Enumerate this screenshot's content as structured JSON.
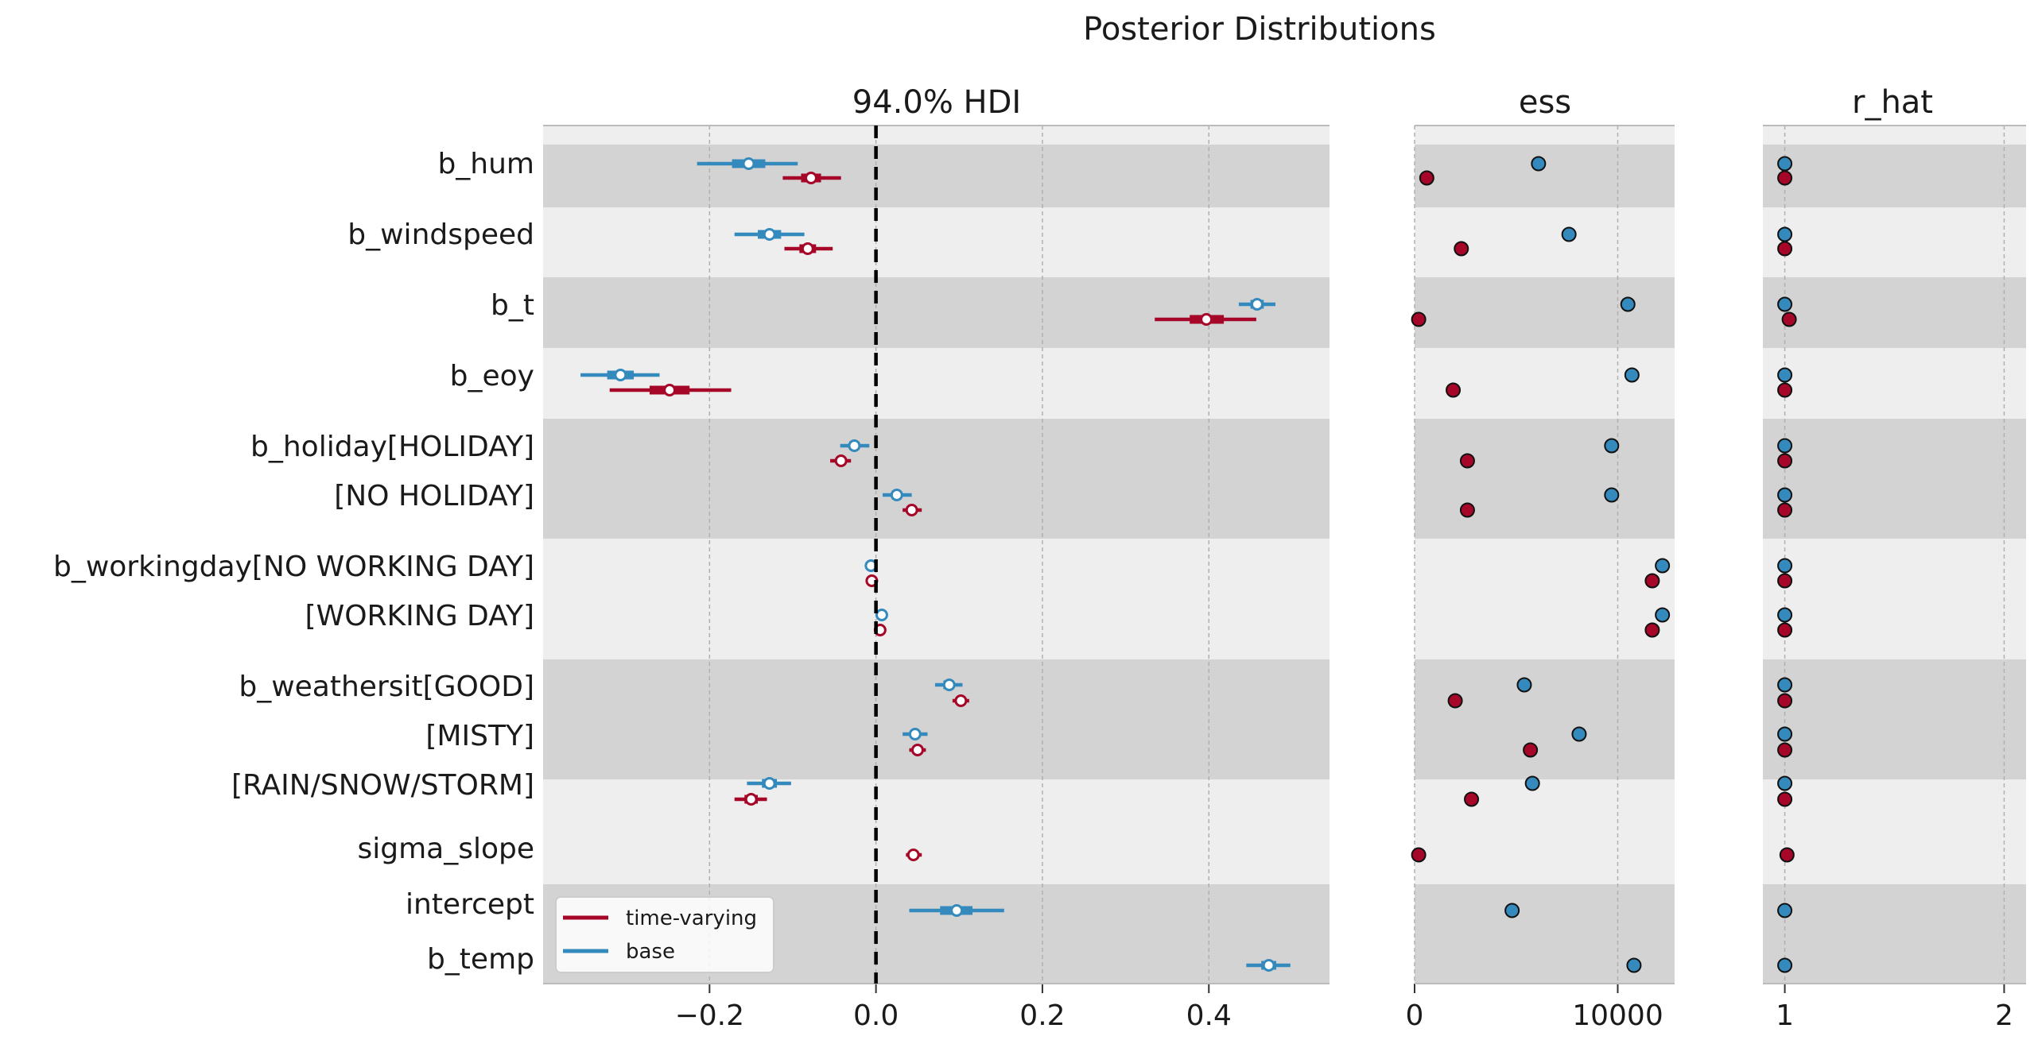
{
  "suptitle": "Posterior Distributions",
  "colors": {
    "time_varying": "#A60628",
    "base": "#348ABD",
    "band_dark": "#d3d3d3",
    "band_light": "#eeeeee",
    "zero_line": "#000000"
  },
  "chart_data": [
    {
      "type": "forest",
      "title": "94.0% HDI",
      "xlim": [
        -0.4,
        0.545
      ],
      "xticks": [
        -0.2,
        0.0,
        0.2,
        0.4
      ],
      "xtick_labels": [
        "−0.2",
        "0.0",
        "0.2",
        "0.4"
      ],
      "grid": "vertical dashed",
      "reference_line": 0.0,
      "legend": {
        "placement": "lower-left",
        "entries": [
          "time-varying",
          "base"
        ]
      },
      "y_labels": [
        "b_hum",
        "b_windspeed",
        "b_t",
        "b_eoy",
        "b_holiday[HOLIDAY]",
        "[NO HOLIDAY]",
        "b_workingday[NO WORKING DAY]",
        "[WORKING DAY]",
        "b_weathersit[GOOD]",
        "[MISTY]",
        "[RAIN/SNOW/STORM]",
        "sigma_slope",
        "intercept",
        "b_temp"
      ],
      "series": [
        {
          "name": "time-varying",
          "rows": [
            {
              "label": "b_hum",
              "mean": -0.078,
              "hdi94": [
                -0.112,
                -0.042
              ],
              "iqr": [
                -0.09,
                -0.066
              ]
            },
            {
              "label": "b_windspeed",
              "mean": -0.082,
              "hdi94": [
                -0.11,
                -0.052
              ],
              "iqr": [
                -0.092,
                -0.072
              ]
            },
            {
              "label": "b_t",
              "mean": 0.397,
              "hdi94": [
                0.335,
                0.457
              ],
              "iqr": [
                0.377,
                0.418
              ]
            },
            {
              "label": "b_eoy",
              "mean": -0.248,
              "hdi94": [
                -0.32,
                -0.174
              ],
              "iqr": [
                -0.272,
                -0.224
              ]
            },
            {
              "label": "b_holiday[HOLIDAY]",
              "mean": -0.042,
              "hdi94": [
                -0.055,
                -0.03
              ],
              "iqr": [
                -0.047,
                -0.038
              ]
            },
            {
              "label": "[NO HOLIDAY]",
              "mean": 0.043,
              "hdi94": [
                0.032,
                0.055
              ],
              "iqr": [
                0.038,
                0.047
              ]
            },
            {
              "label": "b_workingday[NO WORKING DAY]",
              "mean": -0.005,
              "hdi94": [
                -0.007,
                -0.003
              ],
              "iqr": [
                -0.006,
                -0.004
              ]
            },
            {
              "label": "[WORKING DAY]",
              "mean": 0.005,
              "hdi94": [
                0.003,
                0.007
              ],
              "iqr": [
                0.004,
                0.006
              ]
            },
            {
              "label": "b_weathersit[GOOD]",
              "mean": 0.102,
              "hdi94": [
                0.092,
                0.112
              ],
              "iqr": [
                0.098,
                0.106
              ]
            },
            {
              "label": "[MISTY]",
              "mean": 0.05,
              "hdi94": [
                0.04,
                0.06
              ],
              "iqr": [
                0.046,
                0.054
              ]
            },
            {
              "label": "[RAIN/SNOW/STORM]",
              "mean": -0.15,
              "hdi94": [
                -0.17,
                -0.131
              ],
              "iqr": [
                -0.158,
                -0.142
              ]
            },
            {
              "label": "sigma_slope",
              "mean": 0.045,
              "hdi94": [
                0.036,
                0.055
              ],
              "iqr": [
                0.041,
                0.049
              ]
            }
          ]
        },
        {
          "name": "base",
          "rows": [
            {
              "label": "b_hum",
              "mean": -0.153,
              "hdi94": [
                -0.215,
                -0.094
              ],
              "iqr": [
                -0.173,
                -0.133
              ]
            },
            {
              "label": "b_windspeed",
              "mean": -0.128,
              "hdi94": [
                -0.17,
                -0.086
              ],
              "iqr": [
                -0.142,
                -0.114
              ]
            },
            {
              "label": "b_t",
              "mean": 0.458,
              "hdi94": [
                0.436,
                0.48
              ],
              "iqr": [
                0.45,
                0.466
              ]
            },
            {
              "label": "b_eoy",
              "mean": -0.307,
              "hdi94": [
                -0.355,
                -0.26
              ],
              "iqr": [
                -0.323,
                -0.291
              ]
            },
            {
              "label": "b_holiday[HOLIDAY]",
              "mean": -0.026,
              "hdi94": [
                -0.043,
                -0.008
              ],
              "iqr": [
                -0.032,
                -0.02
              ]
            },
            {
              "label": "[NO HOLIDAY]",
              "mean": 0.025,
              "hdi94": [
                0.008,
                0.043
              ],
              "iqr": [
                0.019,
                0.031
              ]
            },
            {
              "label": "b_workingday[NO WORKING DAY]",
              "mean": -0.006,
              "hdi94": [
                -0.008,
                -0.004
              ],
              "iqr": [
                -0.007,
                -0.005
              ]
            },
            {
              "label": "[WORKING DAY]",
              "mean": 0.007,
              "hdi94": [
                0.005,
                0.009
              ],
              "iqr": [
                0.006,
                0.008
              ]
            },
            {
              "label": "b_weathersit[GOOD]",
              "mean": 0.088,
              "hdi94": [
                0.071,
                0.104
              ],
              "iqr": [
                0.081,
                0.094
              ]
            },
            {
              "label": "[MISTY]",
              "mean": 0.047,
              "hdi94": [
                0.032,
                0.062
              ],
              "iqr": [
                0.042,
                0.052
              ]
            },
            {
              "label": "[RAIN/SNOW/STORM]",
              "mean": -0.128,
              "hdi94": [
                -0.155,
                -0.102
              ],
              "iqr": [
                -0.137,
                -0.119
              ]
            },
            {
              "label": "intercept",
              "mean": 0.097,
              "hdi94": [
                0.04,
                0.154
              ],
              "iqr": [
                0.077,
                0.116
              ]
            },
            {
              "label": "b_temp",
              "mean": 0.472,
              "hdi94": [
                0.445,
                0.498
              ],
              "iqr": [
                0.463,
                0.481
              ]
            }
          ]
        }
      ]
    },
    {
      "type": "scatter",
      "title": "ess",
      "xlim": [
        0,
        12800
      ],
      "xticks": [
        0,
        10000
      ],
      "xtick_labels": [
        "0",
        "10000"
      ],
      "grid": "vertical dashed",
      "series": [
        {
          "name": "time-varying",
          "values": {
            "b_hum": 600,
            "b_windspeed": 2300,
            "b_t": 200,
            "b_eoy": 1900,
            "b_holiday[HOLIDAY]": 2600,
            "[NO HOLIDAY]": 2600,
            "b_workingday[NO WORKING DAY]": 11700,
            "[WORKING DAY]": 11700,
            "b_weathersit[GOOD]": 2000,
            "[MISTY]": 5700,
            "[RAIN/SNOW/STORM]": 2800,
            "sigma_slope": 200
          }
        },
        {
          "name": "base",
          "values": {
            "b_hum": 6100,
            "b_windspeed": 7600,
            "b_t": 10500,
            "b_eoy": 10700,
            "b_holiday[HOLIDAY]": 9700,
            "[NO HOLIDAY]": 9700,
            "b_workingday[NO WORKING DAY]": 12200,
            "[WORKING DAY]": 12200,
            "b_weathersit[GOOD]": 5400,
            "[MISTY]": 8100,
            "[RAIN/SNOW/STORM]": 5800,
            "intercept": 4800,
            "b_temp": 10800
          }
        }
      ]
    },
    {
      "type": "scatter",
      "title": "r_hat",
      "xlim": [
        0.9,
        2.1
      ],
      "xticks": [
        1,
        2
      ],
      "xtick_labels": [
        "1",
        "2"
      ],
      "grid": "vertical dashed",
      "series": [
        {
          "name": "time-varying",
          "values": {
            "b_hum": 1.0,
            "b_windspeed": 1.0,
            "b_t": 1.02,
            "b_eoy": 1.0,
            "b_holiday[HOLIDAY]": 1.0,
            "[NO HOLIDAY]": 1.0,
            "b_workingday[NO WORKING DAY]": 1.0,
            "[WORKING DAY]": 1.0,
            "b_weathersit[GOOD]": 1.0,
            "[MISTY]": 1.0,
            "[RAIN/SNOW/STORM]": 1.0,
            "sigma_slope": 1.01
          }
        },
        {
          "name": "base",
          "values": {
            "b_hum": 1.0,
            "b_windspeed": 1.0,
            "b_t": 1.0,
            "b_eoy": 1.0,
            "b_holiday[HOLIDAY]": 1.0,
            "[NO HOLIDAY]": 1.0,
            "b_workingday[NO WORKING DAY]": 1.0,
            "[WORKING DAY]": 1.0,
            "b_weathersit[GOOD]": 1.0,
            "[MISTY]": 1.0,
            "[RAIN/SNOW/STORM]": 1.0,
            "intercept": 1.0,
            "b_temp": 1.0
          }
        }
      ]
    }
  ]
}
